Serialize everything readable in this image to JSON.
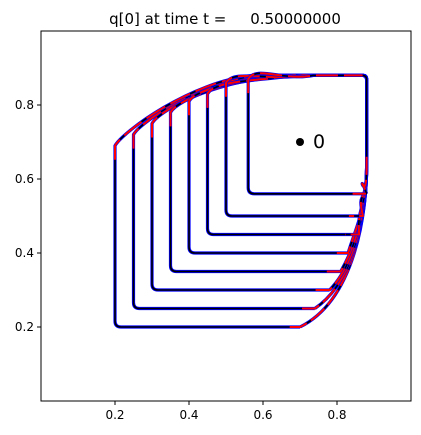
{
  "title": "q[0] at time t =     0.50000000",
  "chart_data": {
    "type": "line",
    "title": "q[0] at time t =     0.50000000",
    "xlabel": "",
    "ylabel": "",
    "xlim": [
      0.0,
      1.0
    ],
    "ylim": [
      0.0,
      1.0
    ],
    "grid": false,
    "xticks": [
      0.2,
      0.4,
      0.6,
      0.8
    ],
    "yticks": [
      0.2,
      0.4,
      0.6,
      0.8
    ],
    "xtick_labels": [
      "0.2",
      "0.4",
      "0.6",
      "0.8"
    ],
    "ytick_labels": [
      "0.2",
      "0.4",
      "0.6",
      "0.8"
    ],
    "colors": {
      "black": "#000000",
      "blue": "#0000ff",
      "red": "#ff0000"
    },
    "contour_levels": [
      {
        "x0": 0.2,
        "y0": 0.2,
        "y_top_left": 0.69,
        "top": 0.88,
        "right": 0.88,
        "x_bottom_right": 0.7
      },
      {
        "x0": 0.25,
        "y0": 0.25,
        "y_top_left": 0.72,
        "top": 0.88,
        "right": 0.88,
        "x_bottom_right": 0.74
      },
      {
        "x0": 0.3,
        "y0": 0.3,
        "y_top_left": 0.75,
        "top": 0.88,
        "right": 0.88,
        "x_bottom_right": 0.78
      },
      {
        "x0": 0.35,
        "y0": 0.35,
        "y_top_left": 0.78,
        "top": 0.88,
        "right": 0.88,
        "x_bottom_right": 0.81
      },
      {
        "x0": 0.4,
        "y0": 0.4,
        "y_top_left": 0.81,
        "top": 0.88,
        "right": 0.88,
        "x_bottom_right": 0.83
      },
      {
        "x0": 0.45,
        "y0": 0.45,
        "y_top_left": 0.83,
        "top": 0.88,
        "right": 0.88,
        "x_bottom_right": 0.86
      },
      {
        "x0": 0.5,
        "y0": 0.5,
        "y_top_left": 0.86,
        "top": 0.88,
        "right": 0.88,
        "x_bottom_right": 0.87
      },
      {
        "x0": 0.56,
        "y0": 0.56,
        "y_top_left": 0.87,
        "top": 0.88,
        "right": 0.88,
        "x_bottom_right": 0.88
      }
    ],
    "marker": {
      "x": 0.7,
      "y": 0.7,
      "label": "0"
    }
  }
}
